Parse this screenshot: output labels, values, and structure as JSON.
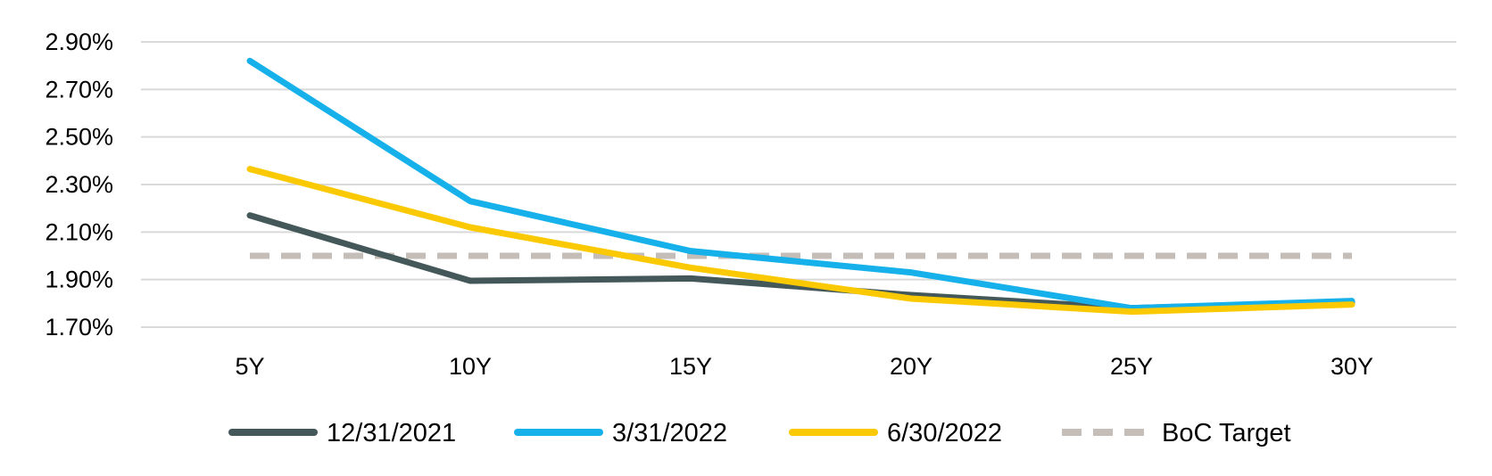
{
  "chart_data": {
    "type": "line",
    "title": "",
    "xlabel": "",
    "ylabel": "",
    "categories": [
      "5Y",
      "10Y",
      "15Y",
      "20Y",
      "25Y",
      "30Y"
    ],
    "y_ticks": [
      "1.70%",
      "1.90%",
      "2.10%",
      "2.30%",
      "2.50%",
      "2.70%",
      "2.90%"
    ],
    "ylim": [
      1.7,
      2.9
    ],
    "grid": true,
    "legend_position": "bottom",
    "series": [
      {
        "name": "12/31/2021",
        "color": "#44585a",
        "style": "solid",
        "values": [
          2.17,
          1.895,
          1.905,
          1.835,
          1.78,
          1.805
        ]
      },
      {
        "name": "3/31/2022",
        "color": "#16b1ea",
        "style": "solid",
        "values": [
          2.82,
          2.23,
          2.02,
          1.93,
          1.78,
          1.81
        ]
      },
      {
        "name": "6/30/2022",
        "color": "#fbc901",
        "style": "solid",
        "values": [
          2.365,
          2.12,
          1.95,
          1.82,
          1.765,
          1.795
        ]
      },
      {
        "name": "BoC Target",
        "color": "#c5beb8",
        "style": "dashed",
        "values": [
          2.0,
          2.0,
          2.0,
          2.0,
          2.0,
          2.0
        ]
      }
    ]
  }
}
